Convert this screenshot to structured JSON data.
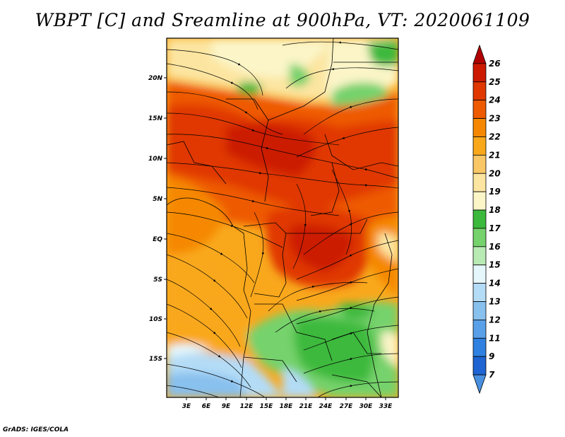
{
  "title": "WBPT [C] and Sreamline at 900hPa, VT: 2020061109",
  "credit": "GrADS: IGES/COLA",
  "lat_labels": [
    "20N",
    "15N",
    "10N",
    "5N",
    "EQ",
    "5S",
    "10S",
    "15S"
  ],
  "lon_labels": [
    "3E",
    "6E",
    "9E",
    "12E",
    "15E",
    "18E",
    "21E",
    "24E",
    "27E",
    "30E",
    "33E"
  ],
  "colorbar": {
    "labels": [
      "26",
      "25",
      "24",
      "23",
      "22",
      "21",
      "20",
      "19",
      "18",
      "17",
      "16",
      "15",
      "14",
      "13",
      "12",
      "11",
      "9",
      "7"
    ],
    "colors": [
      "#b00000",
      "#cc1a00",
      "#e03800",
      "#ee5a00",
      "#f58800",
      "#f9a81c",
      "#fac766",
      "#fce5a0",
      "#fbf5c8",
      "#3cb93c",
      "#76d26c",
      "#b8eab4",
      "#e6f7fb",
      "#b4dcf6",
      "#88c0ee",
      "#5aa0e8",
      "#2f80e0",
      "#1e64d2",
      "#4a90e0"
    ]
  },
  "map": {
    "lon_range": [
      0,
      35
    ],
    "lat_range": [
      -20,
      24
    ],
    "field": "wet-bulb potential temperature (C)",
    "level": "900hPa",
    "valid_time": "2020061109"
  }
}
